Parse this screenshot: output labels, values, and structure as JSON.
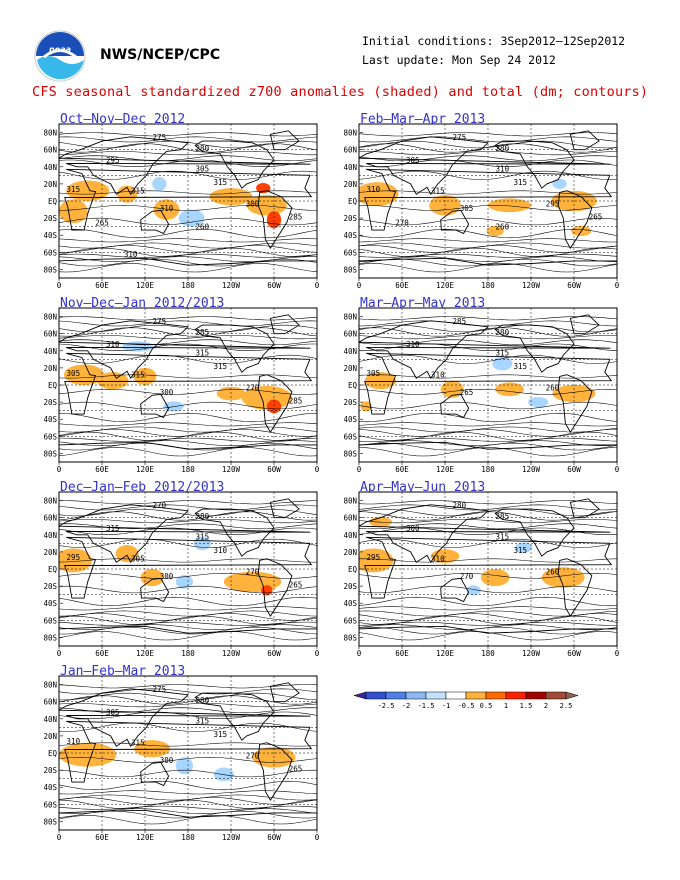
{
  "header": {
    "agency": "NWS/NCEP/CPC",
    "initial_conditions": "Initial conditions: 3Sep2012–12Sep2012",
    "last_update": "Last update: Mon Sep 24 2012",
    "title": "CFS seasonal standardized z700 anomalies (shaded) and total (dm; contours)",
    "logo_icon": "noaa-logo-icon",
    "logo_text": "noaa"
  },
  "colors": {
    "title_red": "#dd0000",
    "panel_title_blue": "#3333cc",
    "light_blue": "#a9d6ff",
    "orange": "#ffb23c",
    "red": "#ff4000"
  },
  "axes": {
    "lat_labels": [
      "80N",
      "60N",
      "40N",
      "20N",
      "EQ",
      "20S",
      "40S",
      "60S",
      "80S"
    ],
    "lon_labels": [
      "0",
      "60E",
      "120E",
      "180",
      "120W",
      "60W",
      "0"
    ]
  },
  "panels": [
    {
      "title": "Oct–Nov–Dec 2012",
      "contours": [
        "275",
        "280",
        "295",
        "305",
        "315",
        "315",
        "315",
        "310",
        "300",
        "285",
        "265",
        "260",
        "310"
      ]
    },
    {
      "title": "Nov–Dec–Jan 2012/2013",
      "contours": [
        "275",
        "285",
        "310",
        "315",
        "315",
        "315",
        "305",
        "300",
        "270",
        "285"
      ]
    },
    {
      "title": "Dec–Jan–Feb 2012/2013",
      "contours": [
        "270",
        "280",
        "315",
        "315",
        "310",
        "305",
        "295",
        "300",
        "270",
        "265"
      ]
    },
    {
      "title": "Jan–Feb–Mar 2013",
      "contours": [
        "275",
        "280",
        "305",
        "315",
        "315",
        "315",
        "310",
        "300",
        "270",
        "265"
      ]
    },
    {
      "title": "Feb–Mar–Apr 2013",
      "contours": [
        "275",
        "280",
        "305",
        "310",
        "315",
        "315",
        "310",
        "305",
        "295",
        "265",
        "270",
        "260"
      ]
    },
    {
      "title": "Mar–Apr–May 2013",
      "contours": [
        "285",
        "280",
        "310",
        "315",
        "315",
        "310",
        "305",
        "265",
        "260"
      ]
    },
    {
      "title": "Apr–May–Jun 2013",
      "contours": [
        "280",
        "285",
        "300",
        "315",
        "315",
        "310",
        "295",
        "270",
        "260"
      ]
    }
  ],
  "chart_data": {
    "type": "heatmap",
    "legend": {
      "ticks": [
        "-2.5",
        "-2",
        "-1.5",
        "-1",
        "-0.5",
        "0.5",
        "1",
        "1.5",
        "2",
        "2.5"
      ],
      "bin_colors": [
        "#4020a0",
        "#3050d0",
        "#5080e6",
        "#8bb8f0",
        "#c4e2ff",
        "#ffffff",
        "#ffb23c",
        "#ff6a00",
        "#ff2000",
        "#a00000",
        "#a04a38",
        "#8a6050"
      ]
    },
    "grid": true,
    "x_axis_labels": [
      "0",
      "60E",
      "120E",
      "180",
      "120W",
      "60W",
      "0"
    ],
    "y_axis_labels": [
      "80N",
      "60N",
      "40N",
      "20N",
      "EQ",
      "20S",
      "40S",
      "60S",
      "80S"
    ]
  }
}
